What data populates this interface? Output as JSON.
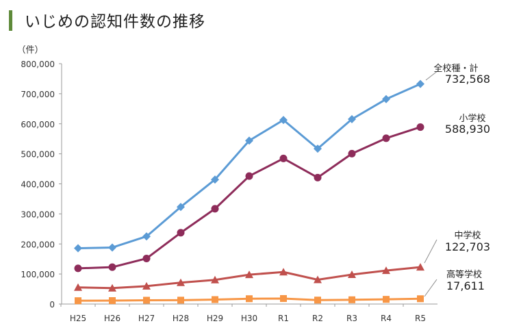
{
  "page": {
    "title": "いじめの認知件数の推移"
  },
  "chart_data": {
    "type": "line",
    "title": "いじめの認知件数の推移",
    "ylabel": "（件）",
    "xlabel": "",
    "ylim": [
      0,
      800000
    ],
    "yticks": [
      0,
      100000,
      200000,
      300000,
      400000,
      500000,
      600000,
      700000,
      800000
    ],
    "ytick_labels": [
      "0",
      "100,000",
      "200,000",
      "300,000",
      "400,000",
      "500,000",
      "600,000",
      "700,000",
      "800,000"
    ],
    "categories": [
      "H25",
      "H26",
      "H27",
      "H28",
      "H29",
      "H30",
      "R1",
      "R2",
      "R3",
      "R4",
      "R5"
    ],
    "grid": false,
    "series": [
      {
        "name": "全校種・計",
        "label_value": "732,568",
        "color": "#5b9bd5",
        "marker": "diamond",
        "values": [
          185803,
          188072,
          225132,
          323143,
          414378,
          543933,
          612496,
          517163,
          615351,
          681948,
          732568
        ]
      },
      {
        "name": "小学校",
        "label_value": "588,930",
        "color": "#8e2c5a",
        "marker": "circle",
        "values": [
          118748,
          122734,
          151692,
          237256,
          317121,
          425844,
          484545,
          420897,
          500562,
          551944,
          588930
        ]
      },
      {
        "name": "中学校",
        "label_value": "122,703",
        "color": "#c0504d",
        "marker": "triangle",
        "values": [
          55248,
          52971,
          59502,
          71309,
          80424,
          97704,
          106524,
          80877,
          97937,
          111404,
          122703
        ]
      },
      {
        "name": "高等学校",
        "label_value": "17,611",
        "color": "#f79646",
        "marker": "square",
        "values": [
          11039,
          11404,
          12664,
          12874,
          14789,
          17709,
          18352,
          13126,
          14157,
          15568,
          17611
        ]
      }
    ]
  }
}
